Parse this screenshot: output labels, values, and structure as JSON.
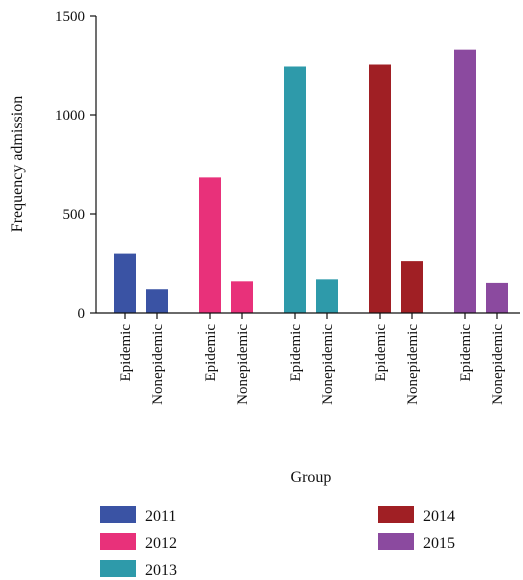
{
  "chart_data": {
    "type": "bar",
    "xlabel": "Group",
    "ylabel": "Frequency admission",
    "ylim": [
      0,
      1500
    ],
    "yticks": [
      0,
      500,
      1000,
      1500
    ],
    "grid": false,
    "legend_position": "bottom",
    "groups": [
      {
        "year": "2011",
        "color": "#3a53a4",
        "bars": [
          {
            "category": "Epidemic",
            "value": 300
          },
          {
            "category": "Nonepidemic",
            "value": 120
          }
        ]
      },
      {
        "year": "2012",
        "color": "#e8317a",
        "bars": [
          {
            "category": "Epidemic",
            "value": 685
          },
          {
            "category": "Nonepidemic",
            "value": 160
          }
        ]
      },
      {
        "year": "2013",
        "color": "#2e9aaa",
        "bars": [
          {
            "category": "Epidemic",
            "value": 1245
          },
          {
            "category": "Nonepidemic",
            "value": 170
          }
        ]
      },
      {
        "year": "2014",
        "color": "#a01f24",
        "bars": [
          {
            "category": "Epidemic",
            "value": 1255
          },
          {
            "category": "Nonepidemic",
            "value": 262
          }
        ]
      },
      {
        "year": "2015",
        "color": "#8b4a9f",
        "bars": [
          {
            "category": "Epidemic",
            "value": 1330
          },
          {
            "category": "Nonepidemic",
            "value": 152
          }
        ]
      }
    ],
    "legend": [
      {
        "label": "2011",
        "color": "#3a53a4"
      },
      {
        "label": "2012",
        "color": "#e8317a"
      },
      {
        "label": "2013",
        "color": "#2e9aaa"
      },
      {
        "label": "2014",
        "color": "#a01f24"
      },
      {
        "label": "2015",
        "color": "#8b4a9f"
      }
    ]
  }
}
